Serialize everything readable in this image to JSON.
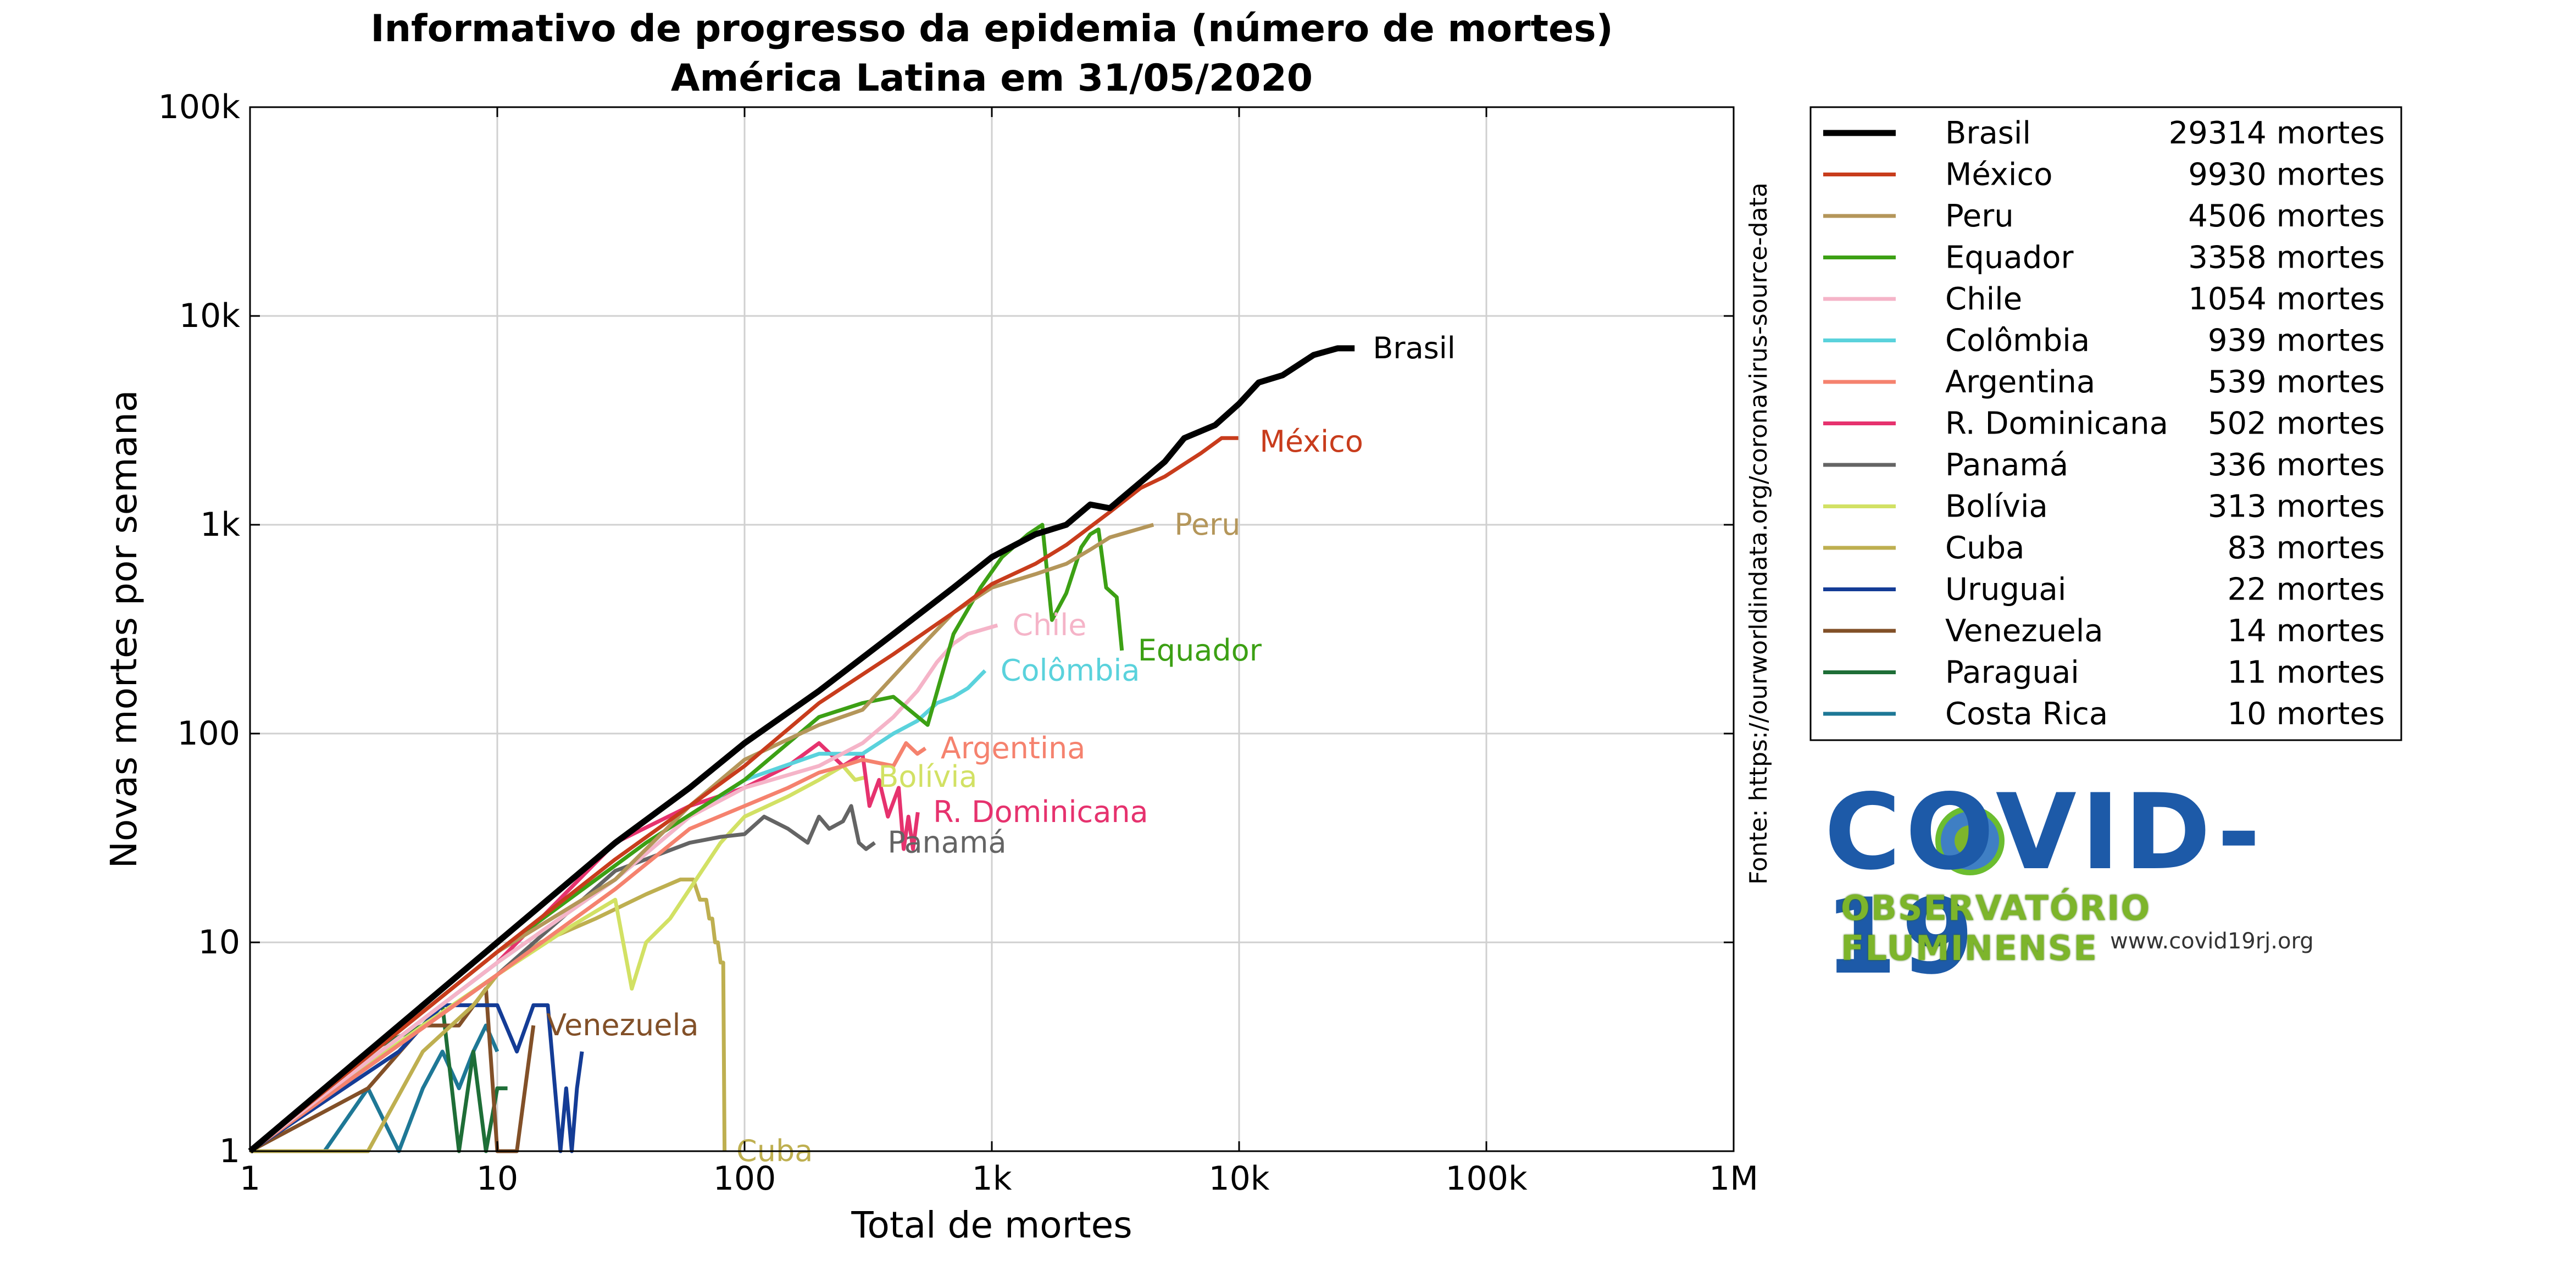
{
  "chart_data": {
    "type": "line",
    "title": [
      "Informativo de progresso da epidemia (número de mortes)",
      "América Latina em 31/05/2020"
    ],
    "xlabel": "Total de mortes",
    "ylabel": "Novas mortes por semana",
    "xscale": "log",
    "yscale": "log",
    "xlim": [
      1,
      1000000
    ],
    "ylim": [
      1,
      100000
    ],
    "x_ticks": [
      {
        "value": 1,
        "label": "1"
      },
      {
        "value": 10,
        "label": "10"
      },
      {
        "value": 100,
        "label": "100"
      },
      {
        "value": 1000,
        "label": "1k"
      },
      {
        "value": 10000,
        "label": "10k"
      },
      {
        "value": 100000,
        "label": "100k"
      },
      {
        "value": 1000000,
        "label": "1M"
      }
    ],
    "y_ticks": [
      {
        "value": 1,
        "label": "1"
      },
      {
        "value": 10,
        "label": "10"
      },
      {
        "value": 100,
        "label": "100"
      },
      {
        "value": 1000,
        "label": "1k"
      },
      {
        "value": 10000,
        "label": "10k"
      },
      {
        "value": 100000,
        "label": "100k"
      }
    ],
    "grid": true,
    "legend_position": "right",
    "source": "Fonte: https://ourworldindata.org/coronavirus-source-data",
    "series": [
      {
        "name": "Brasil",
        "legend_value": "29314 mortes",
        "color": "#000000",
        "width": 11,
        "label": {
          "text": "Brasil",
          "x": 33000,
          "y": 7000
        },
        "points": [
          [
            1,
            1
          ],
          [
            10,
            10
          ],
          [
            30,
            30
          ],
          [
            60,
            55
          ],
          [
            100,
            90
          ],
          [
            200,
            160
          ],
          [
            400,
            300
          ],
          [
            700,
            500
          ],
          [
            1000,
            700
          ],
          [
            1500,
            900
          ],
          [
            2000,
            1000
          ],
          [
            2500,
            1250
          ],
          [
            3000,
            1200
          ],
          [
            4000,
            1600
          ],
          [
            5000,
            2000
          ],
          [
            6000,
            2600
          ],
          [
            8000,
            3000
          ],
          [
            10000,
            3800
          ],
          [
            12000,
            4800
          ],
          [
            15000,
            5200
          ],
          [
            20000,
            6500
          ],
          [
            25000,
            7000
          ],
          [
            29314,
            7000
          ]
        ]
      },
      {
        "name": "México",
        "legend_value": "9930 mortes",
        "color": "#c83c1c",
        "width": 7,
        "label": {
          "text": "México",
          "x": 11500,
          "y": 2500
        },
        "points": [
          [
            1,
            1
          ],
          [
            10,
            9
          ],
          [
            30,
            25
          ],
          [
            60,
            45
          ],
          [
            100,
            70
          ],
          [
            200,
            140
          ],
          [
            400,
            240
          ],
          [
            700,
            380
          ],
          [
            1000,
            520
          ],
          [
            1500,
            650
          ],
          [
            2000,
            800
          ],
          [
            3000,
            1150
          ],
          [
            4000,
            1500
          ],
          [
            5000,
            1700
          ],
          [
            7000,
            2200
          ],
          [
            8500,
            2600
          ],
          [
            9930,
            2600
          ]
        ]
      },
      {
        "name": "Peru",
        "legend_value": "4506 mortes",
        "color": "#b4965a",
        "width": 7,
        "label": {
          "text": "Peru",
          "x": 5200,
          "y": 1000
        },
        "points": [
          [
            1,
            1
          ],
          [
            10,
            9
          ],
          [
            30,
            20
          ],
          [
            60,
            45
          ],
          [
            100,
            75
          ],
          [
            200,
            110
          ],
          [
            300,
            130
          ],
          [
            500,
            250
          ],
          [
            700,
            380
          ],
          [
            1000,
            500
          ],
          [
            1500,
            580
          ],
          [
            2000,
            650
          ],
          [
            2500,
            760
          ],
          [
            3000,
            870
          ],
          [
            4000,
            960
          ],
          [
            4506,
            1000
          ]
        ]
      },
      {
        "name": "Equador",
        "legend_value": "3358 mortes",
        "color": "#3ca014",
        "width": 7,
        "label": {
          "text": "Equador",
          "x": 3700,
          "y": 250
        },
        "points": [
          [
            1,
            1
          ],
          [
            10,
            9
          ],
          [
            40,
            30
          ],
          [
            100,
            60
          ],
          [
            200,
            120
          ],
          [
            300,
            140
          ],
          [
            400,
            150
          ],
          [
            550,
            110
          ],
          [
            700,
            300
          ],
          [
            900,
            500
          ],
          [
            1100,
            700
          ],
          [
            1400,
            900
          ],
          [
            1600,
            1000
          ],
          [
            1750,
            350
          ],
          [
            2000,
            470
          ],
          [
            2300,
            780
          ],
          [
            2500,
            900
          ],
          [
            2700,
            950
          ],
          [
            2900,
            500
          ],
          [
            3200,
            450
          ],
          [
            3358,
            250
          ]
        ]
      },
      {
        "name": "Chile",
        "legend_value": "1054 mortes",
        "color": "#f5b4c8",
        "width": 7,
        "label": {
          "text": "Chile",
          "x": 1150,
          "y": 330
        },
        "points": [
          [
            1,
            1
          ],
          [
            10,
            8
          ],
          [
            30,
            20
          ],
          [
            60,
            40
          ],
          [
            100,
            55
          ],
          [
            200,
            70
          ],
          [
            300,
            90
          ],
          [
            400,
            120
          ],
          [
            500,
            160
          ],
          [
            600,
            220
          ],
          [
            700,
            270
          ],
          [
            800,
            300
          ],
          [
            1054,
            330
          ]
        ]
      },
      {
        "name": "Colômbia",
        "legend_value": "939 mortes",
        "color": "#5ad2dc",
        "width": 7,
        "label": {
          "text": "Colômbia",
          "x": 1030,
          "y": 200
        },
        "points": [
          [
            1,
            1
          ],
          [
            10,
            8
          ],
          [
            30,
            20
          ],
          [
            60,
            40
          ],
          [
            100,
            60
          ],
          [
            200,
            80
          ],
          [
            300,
            80
          ],
          [
            400,
            100
          ],
          [
            500,
            115
          ],
          [
            600,
            140
          ],
          [
            700,
            150
          ],
          [
            800,
            165
          ],
          [
            939,
            200
          ]
        ]
      },
      {
        "name": "Argentina",
        "legend_value": "539 mortes",
        "color": "#f5826e",
        "width": 7,
        "label": {
          "text": "Argentina",
          "x": 590,
          "y": 85
        },
        "points": [
          [
            1,
            1
          ],
          [
            10,
            7
          ],
          [
            30,
            18
          ],
          [
            60,
            35
          ],
          [
            100,
            45
          ],
          [
            150,
            55
          ],
          [
            200,
            65
          ],
          [
            250,
            70
          ],
          [
            300,
            75
          ],
          [
            400,
            70
          ],
          [
            450,
            90
          ],
          [
            500,
            80
          ],
          [
            539,
            85
          ]
        ]
      },
      {
        "name": "R. Dominicana",
        "legend_value": "502 mortes",
        "color": "#e6326e",
        "width": 7,
        "label": {
          "text": "R. Dominicana",
          "x": 550,
          "y": 42
        },
        "points": [
          [
            1,
            1
          ],
          [
            10,
            8
          ],
          [
            30,
            30
          ],
          [
            60,
            45
          ],
          [
            100,
            55
          ],
          [
            150,
            70
          ],
          [
            200,
            90
          ],
          [
            250,
            70
          ],
          [
            300,
            80
          ],
          [
            320,
            45
          ],
          [
            350,
            60
          ],
          [
            380,
            40
          ],
          [
            420,
            55
          ],
          [
            440,
            28
          ],
          [
            460,
            40
          ],
          [
            480,
            28
          ],
          [
            502,
            42
          ]
        ]
      },
      {
        "name": "Panamá",
        "legend_value": "336 mortes",
        "color": "#646464",
        "width": 7,
        "label": {
          "text": "Panamá",
          "x": 360,
          "y": 30
        },
        "points": [
          [
            1,
            1
          ],
          [
            10,
            7
          ],
          [
            30,
            22
          ],
          [
            60,
            30
          ],
          [
            80,
            32
          ],
          [
            100,
            33
          ],
          [
            120,
            40
          ],
          [
            150,
            35
          ],
          [
            180,
            30
          ],
          [
            200,
            40
          ],
          [
            220,
            35
          ],
          [
            250,
            38
          ],
          [
            270,
            45
          ],
          [
            290,
            30
          ],
          [
            310,
            28
          ],
          [
            336,
            30
          ]
        ]
      },
      {
        "name": "Bolívia",
        "legend_value": "313 mortes",
        "color": "#d2e164",
        "width": 7,
        "label": {
          "text": "Bolívia",
          "x": 330,
          "y": 62
        },
        "points": [
          [
            1,
            1
          ],
          [
            5,
            4
          ],
          [
            10,
            7
          ],
          [
            20,
            12
          ],
          [
            30,
            16
          ],
          [
            35,
            6
          ],
          [
            40,
            10
          ],
          [
            50,
            13
          ],
          [
            60,
            18
          ],
          [
            80,
            30
          ],
          [
            100,
            40
          ],
          [
            150,
            50
          ],
          [
            200,
            60
          ],
          [
            250,
            70
          ],
          [
            280,
            60
          ],
          [
            313,
            62
          ]
        ]
      },
      {
        "name": "Cuba",
        "legend_value": "83 mortes",
        "color": "#beaf50",
        "width": 7,
        "label": {
          "text": "Cuba",
          "x": 88,
          "y": 1
        },
        "points": [
          [
            1,
            1
          ],
          [
            3,
            1
          ],
          [
            5,
            3
          ],
          [
            8,
            5
          ],
          [
            10,
            7
          ],
          [
            15,
            10
          ],
          [
            25,
            13
          ],
          [
            40,
            17
          ],
          [
            55,
            20
          ],
          [
            62,
            20
          ],
          [
            66,
            16
          ],
          [
            70,
            16
          ],
          [
            72,
            13
          ],
          [
            74,
            13
          ],
          [
            76,
            10
          ],
          [
            78,
            10
          ],
          [
            80,
            8
          ],
          [
            82,
            8
          ],
          [
            83,
            1
          ]
        ]
      },
      {
        "name": "Uruguai",
        "legend_value": "22 mortes",
        "color": "#143c96",
        "width": 7,
        "label": null,
        "points": [
          [
            1,
            1
          ],
          [
            4,
            3
          ],
          [
            6,
            5
          ],
          [
            10,
            5
          ],
          [
            12,
            3
          ],
          [
            14,
            5
          ],
          [
            16,
            5
          ],
          [
            18,
            1
          ],
          [
            19,
            2
          ],
          [
            20,
            1
          ],
          [
            21,
            2
          ],
          [
            22,
            3
          ]
        ]
      },
      {
        "name": "Venezuela",
        "legend_value": "14 mortes",
        "color": "#825028",
        "width": 7,
        "label": {
          "text": "Venezuela",
          "x": 15,
          "y": 4
        },
        "points": [
          [
            1,
            1
          ],
          [
            3,
            2
          ],
          [
            5,
            4
          ],
          [
            7,
            4
          ],
          [
            9,
            6
          ],
          [
            10,
            1
          ],
          [
            12,
            1
          ],
          [
            14,
            4
          ]
        ]
      },
      {
        "name": "Paraguai",
        "legend_value": "11 mortes",
        "color": "#1e6e37",
        "width": 7,
        "label": null,
        "points": [
          [
            1,
            1
          ],
          [
            3,
            3
          ],
          [
            5,
            4
          ],
          [
            6,
            5
          ],
          [
            7,
            1
          ],
          [
            8,
            3
          ],
          [
            9,
            1
          ],
          [
            10,
            2
          ],
          [
            11,
            2
          ]
        ]
      },
      {
        "name": "Costa Rica",
        "legend_value": "10 mortes",
        "color": "#1e7896",
        "width": 7,
        "label": null,
        "points": [
          [
            1,
            1
          ],
          [
            2,
            1
          ],
          [
            3,
            2
          ],
          [
            4,
            1
          ],
          [
            5,
            2
          ],
          [
            6,
            3
          ],
          [
            7,
            2
          ],
          [
            8,
            3
          ],
          [
            9,
            4
          ],
          [
            10,
            3
          ]
        ]
      }
    ]
  },
  "logo": {
    "title": "COVID-19",
    "subtitle": "OBSERVATÓRIO FLUMINENSE",
    "url": "www.covid19rj.org"
  }
}
